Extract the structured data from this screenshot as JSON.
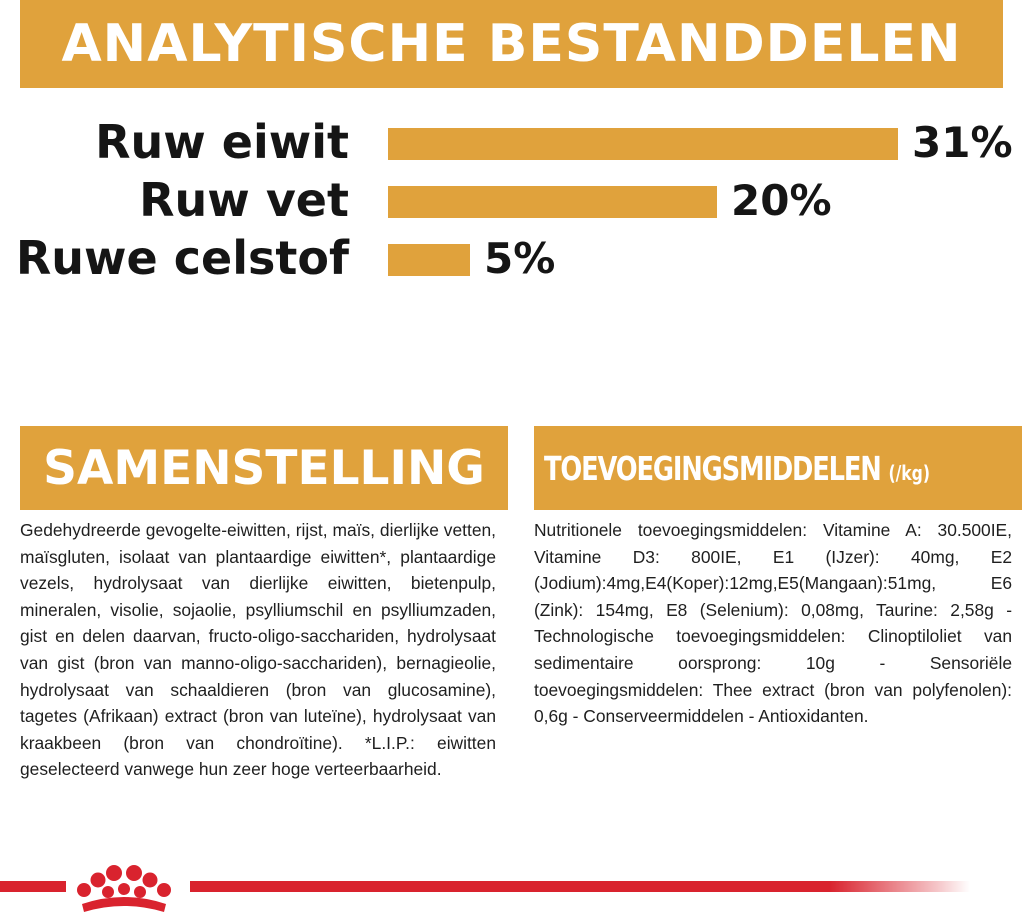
{
  "title": "ANALYTISCHE BESTANDDELEN",
  "chart_data": {
    "type": "bar",
    "orientation": "horizontal",
    "categories": [
      "Ruw eiwit",
      "Ruw vet",
      "Ruwe celstof"
    ],
    "values": [
      31,
      20,
      5
    ],
    "value_labels": [
      "31%",
      "20%",
      "5%"
    ],
    "unit": "%",
    "xlim": [
      0,
      31
    ],
    "grid": false,
    "legend": "none",
    "bar_color": "#e0a23c"
  },
  "composition": {
    "heading": "SAMENSTELLING",
    "text": "Gedehydreerde gevogelte-eiwitten, rijst, maïs, dierlijke vetten, maïsgluten, isolaat van plantaardige eiwitten*, plantaardige vezels, hydrolysaat van dierlijke eiwitten, bietenpulp, mineralen, visolie, sojaolie, psylliumschil en psylliumzaden, gist en delen daarvan, fructo-oligo-sacchariden, hydrolysaat van gist (bron van manno-oligo-sacchariden), bernagieolie, hydrolysaat van schaaldieren (bron van glucosamine), tagetes (Afrikaan) extract (bron van luteïne), hydrolysaat van kraakbeen (bron van chondroïtine). *L.I.P.: eiwitten geselecteerd vanwege hun zeer hoge verteerbaarheid."
  },
  "additives": {
    "heading": "TOEVOEGINGSMIDDELEN",
    "heading_unit": "(/kg)",
    "text": "Nutritionele toevoegingsmiddelen: Vitamine A: 30.500IE, Vitamine D3: 800IE, E1 (IJzer): 40mg, E2 (Jodium):4mg,E4(Koper):12mg,E5(Mangaan):51mg, E6 (Zink): 154mg, E8 (Selenium): 0,08mg, Taurine: 2,58g - Technologische toevoegingsmiddelen: Clinoptiloliet van sedimentaire oorsprong: 10g - Sensoriële toevoegingsmiddelen: Thee extract (bron van polyfenolen): 0,6g - Conserveermiddelen - Antioxidanten."
  },
  "footer": {
    "logo_icon": "royal-canin-crown-icon",
    "accent_color": "#d9232e"
  },
  "colors": {
    "accent": "#e0a23c",
    "text": "#1b1b1b"
  }
}
